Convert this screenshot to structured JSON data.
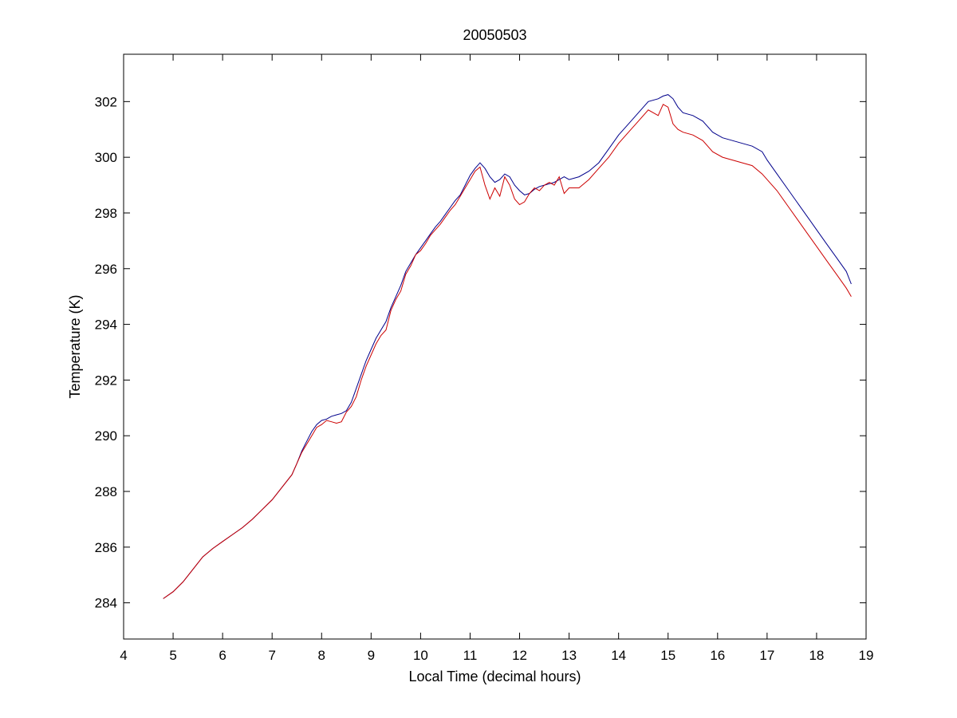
{
  "chart_data": {
    "type": "line",
    "title": "20050503",
    "xlabel": "Local Time (decimal hours)",
    "ylabel": "Temperature (K)",
    "xlim": [
      4,
      19
    ],
    "ylim": [
      282.7,
      303.7
    ],
    "xticks": [
      4,
      5,
      6,
      7,
      8,
      9,
      10,
      11,
      12,
      13,
      14,
      15,
      16,
      17,
      18,
      19
    ],
    "yticks": [
      284,
      286,
      288,
      290,
      292,
      294,
      296,
      298,
      300,
      302
    ],
    "grid": false,
    "legend": "none",
    "series": [
      {
        "color": "#00008b",
        "points": [
          [
            4.8,
            284.15
          ],
          [
            5.0,
            284.4
          ],
          [
            5.2,
            284.75
          ],
          [
            5.4,
            285.2
          ],
          [
            5.6,
            285.65
          ],
          [
            5.8,
            285.95
          ],
          [
            6.0,
            286.2
          ],
          [
            6.2,
            286.45
          ],
          [
            6.4,
            286.7
          ],
          [
            6.6,
            287.0
          ],
          [
            6.8,
            287.35
          ],
          [
            7.0,
            287.7
          ],
          [
            7.2,
            288.15
          ],
          [
            7.4,
            288.6
          ],
          [
            7.5,
            289.0
          ],
          [
            7.6,
            289.45
          ],
          [
            7.7,
            289.8
          ],
          [
            7.8,
            290.15
          ],
          [
            7.9,
            290.4
          ],
          [
            8.0,
            290.55
          ],
          [
            8.1,
            290.6
          ],
          [
            8.2,
            290.7
          ],
          [
            8.3,
            290.75
          ],
          [
            8.4,
            290.8
          ],
          [
            8.5,
            290.9
          ],
          [
            8.6,
            291.2
          ],
          [
            8.7,
            291.7
          ],
          [
            8.8,
            292.2
          ],
          [
            8.9,
            292.7
          ],
          [
            9.0,
            293.1
          ],
          [
            9.1,
            293.5
          ],
          [
            9.2,
            293.8
          ],
          [
            9.3,
            294.1
          ],
          [
            9.4,
            294.6
          ],
          [
            9.5,
            295.0
          ],
          [
            9.6,
            295.4
          ],
          [
            9.7,
            295.9
          ],
          [
            9.8,
            296.2
          ],
          [
            9.9,
            296.5
          ],
          [
            10.0,
            296.75
          ],
          [
            10.1,
            297.0
          ],
          [
            10.2,
            297.25
          ],
          [
            10.3,
            297.5
          ],
          [
            10.4,
            297.7
          ],
          [
            10.5,
            297.95
          ],
          [
            10.6,
            298.2
          ],
          [
            10.7,
            298.45
          ],
          [
            10.8,
            298.65
          ],
          [
            10.9,
            299.0
          ],
          [
            11.0,
            299.35
          ],
          [
            11.1,
            299.6
          ],
          [
            11.2,
            299.8
          ],
          [
            11.3,
            299.6
          ],
          [
            11.4,
            299.3
          ],
          [
            11.5,
            299.1
          ],
          [
            11.6,
            299.2
          ],
          [
            11.7,
            299.4
          ],
          [
            11.8,
            299.3
          ],
          [
            11.9,
            299.0
          ],
          [
            12.0,
            298.8
          ],
          [
            12.1,
            298.65
          ],
          [
            12.2,
            298.7
          ],
          [
            12.3,
            298.85
          ],
          [
            12.4,
            298.95
          ],
          [
            12.5,
            299.0
          ],
          [
            12.6,
            299.05
          ],
          [
            12.7,
            299.1
          ],
          [
            12.8,
            299.2
          ],
          [
            12.9,
            299.3
          ],
          [
            13.0,
            299.2
          ],
          [
            13.2,
            299.3
          ],
          [
            13.4,
            299.5
          ],
          [
            13.6,
            299.8
          ],
          [
            13.8,
            300.3
          ],
          [
            14.0,
            300.8
          ],
          [
            14.2,
            301.2
          ],
          [
            14.4,
            301.6
          ],
          [
            14.6,
            302.0
          ],
          [
            14.8,
            302.1
          ],
          [
            14.9,
            302.2
          ],
          [
            15.0,
            302.25
          ],
          [
            15.1,
            302.1
          ],
          [
            15.2,
            301.8
          ],
          [
            15.3,
            301.6
          ],
          [
            15.5,
            301.5
          ],
          [
            15.7,
            301.3
          ],
          [
            15.9,
            300.9
          ],
          [
            16.1,
            300.7
          ],
          [
            16.3,
            300.6
          ],
          [
            16.5,
            300.5
          ],
          [
            16.7,
            300.4
          ],
          [
            16.9,
            300.2
          ],
          [
            17.0,
            299.9
          ],
          [
            17.2,
            299.4
          ],
          [
            17.4,
            298.9
          ],
          [
            17.6,
            298.4
          ],
          [
            17.8,
            297.9
          ],
          [
            18.0,
            297.4
          ],
          [
            18.2,
            296.9
          ],
          [
            18.4,
            296.4
          ],
          [
            18.6,
            295.9
          ],
          [
            18.7,
            295.45
          ]
        ]
      },
      {
        "color": "#cc0000",
        "points": [
          [
            4.8,
            284.15
          ],
          [
            5.0,
            284.4
          ],
          [
            5.2,
            284.75
          ],
          [
            5.4,
            285.2
          ],
          [
            5.6,
            285.65
          ],
          [
            5.8,
            285.95
          ],
          [
            6.0,
            286.2
          ],
          [
            6.2,
            286.45
          ],
          [
            6.4,
            286.7
          ],
          [
            6.6,
            287.0
          ],
          [
            6.8,
            287.35
          ],
          [
            7.0,
            287.7
          ],
          [
            7.2,
            288.15
          ],
          [
            7.4,
            288.6
          ],
          [
            7.5,
            289.0
          ],
          [
            7.6,
            289.4
          ],
          [
            7.7,
            289.7
          ],
          [
            7.8,
            290.0
          ],
          [
            7.9,
            290.3
          ],
          [
            8.0,
            290.4
          ],
          [
            8.1,
            290.55
          ],
          [
            8.2,
            290.5
          ],
          [
            8.3,
            290.45
          ],
          [
            8.4,
            290.5
          ],
          [
            8.5,
            290.85
          ],
          [
            8.6,
            291.05
          ],
          [
            8.7,
            291.4
          ],
          [
            8.8,
            292.0
          ],
          [
            8.9,
            292.5
          ],
          [
            9.0,
            292.9
          ],
          [
            9.1,
            293.3
          ],
          [
            9.2,
            293.6
          ],
          [
            9.3,
            293.8
          ],
          [
            9.4,
            294.5
          ],
          [
            9.5,
            294.9
          ],
          [
            9.6,
            295.2
          ],
          [
            9.7,
            295.8
          ],
          [
            9.8,
            296.1
          ],
          [
            9.9,
            296.5
          ],
          [
            10.0,
            296.65
          ],
          [
            10.1,
            296.9
          ],
          [
            10.2,
            297.2
          ],
          [
            10.3,
            297.4
          ],
          [
            10.4,
            297.6
          ],
          [
            10.5,
            297.85
          ],
          [
            10.6,
            298.1
          ],
          [
            10.7,
            298.3
          ],
          [
            10.8,
            298.6
          ],
          [
            10.9,
            298.9
          ],
          [
            11.0,
            299.2
          ],
          [
            11.1,
            299.5
          ],
          [
            11.2,
            299.65
          ],
          [
            11.3,
            299.0
          ],
          [
            11.4,
            298.5
          ],
          [
            11.5,
            298.9
          ],
          [
            11.6,
            298.6
          ],
          [
            11.7,
            299.3
          ],
          [
            11.8,
            299.0
          ],
          [
            11.9,
            298.5
          ],
          [
            12.0,
            298.3
          ],
          [
            12.1,
            298.4
          ],
          [
            12.2,
            298.7
          ],
          [
            12.3,
            298.9
          ],
          [
            12.4,
            298.8
          ],
          [
            12.5,
            299.0
          ],
          [
            12.6,
            299.1
          ],
          [
            12.7,
            299.0
          ],
          [
            12.8,
            299.3
          ],
          [
            12.9,
            298.7
          ],
          [
            13.0,
            298.9
          ],
          [
            13.2,
            298.9
          ],
          [
            13.4,
            299.2
          ],
          [
            13.6,
            299.6
          ],
          [
            13.8,
            300.0
          ],
          [
            14.0,
            300.5
          ],
          [
            14.2,
            300.9
          ],
          [
            14.4,
            301.3
          ],
          [
            14.6,
            301.7
          ],
          [
            14.8,
            301.5
          ],
          [
            14.9,
            301.9
          ],
          [
            15.0,
            301.8
          ],
          [
            15.1,
            301.2
          ],
          [
            15.2,
            301.0
          ],
          [
            15.3,
            300.9
          ],
          [
            15.5,
            300.8
          ],
          [
            15.7,
            300.6
          ],
          [
            15.9,
            300.2
          ],
          [
            16.1,
            300.0
          ],
          [
            16.3,
            299.9
          ],
          [
            16.5,
            299.8
          ],
          [
            16.7,
            299.7
          ],
          [
            16.9,
            299.4
          ],
          [
            17.0,
            299.2
          ],
          [
            17.2,
            298.8
          ],
          [
            17.4,
            298.3
          ],
          [
            17.6,
            297.8
          ],
          [
            17.8,
            297.3
          ],
          [
            18.0,
            296.8
          ],
          [
            18.2,
            296.3
          ],
          [
            18.4,
            295.8
          ],
          [
            18.6,
            295.3
          ],
          [
            18.7,
            295.0
          ]
        ]
      }
    ]
  }
}
